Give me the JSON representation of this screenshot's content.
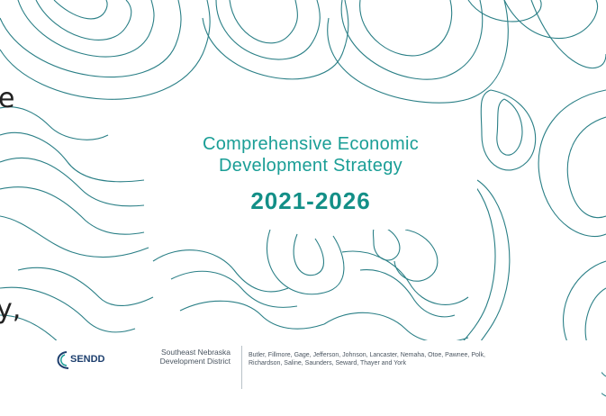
{
  "page": {
    "edge_text_top": "e",
    "edge_text_bottom": "y,"
  },
  "title": {
    "line1": "Comprehensive Economic",
    "line2": "Development Strategy",
    "years": "2021-2026"
  },
  "footer": {
    "logo_text": "SENDD",
    "district_line1": "Southeast Nebraska",
    "district_line2": "Development District",
    "counties_line1": "Butler, Fillmore, Gage, Jefferson, Johnson, Lancaster, Nemaha, Otoe, Pawnee, Polk,",
    "counties_line2": "Richardson, Saline, Saunders, Seward, Thayer and York"
  },
  "colors": {
    "accent": "#1a9e96",
    "accent_dark": "#138f87",
    "contour_line": "#2a7f86",
    "logo_navy": "#1d3f6e"
  }
}
